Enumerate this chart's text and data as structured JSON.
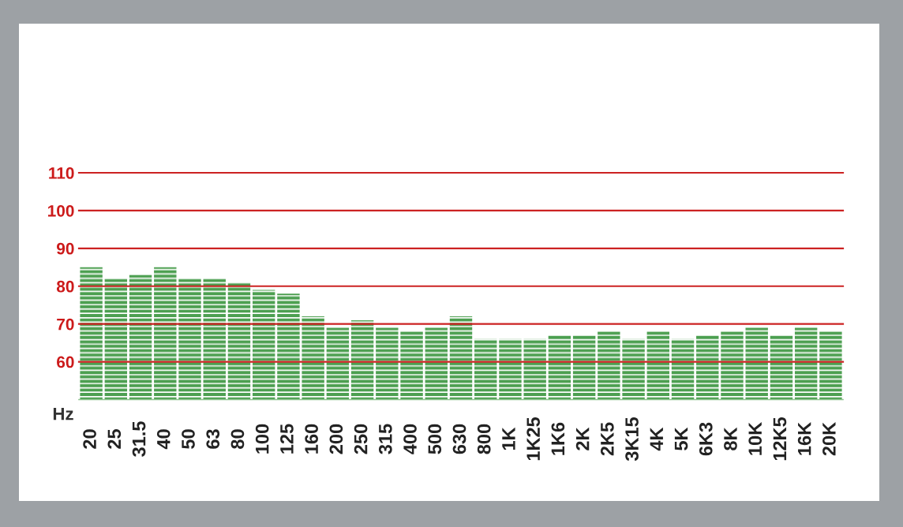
{
  "chart_data": {
    "type": "bar",
    "xlabel": "Hz",
    "categories": [
      "20",
      "25",
      "31.5",
      "40",
      "50",
      "63",
      "80",
      "100",
      "125",
      "160",
      "200",
      "250",
      "315",
      "400",
      "500",
      "630",
      "800",
      "1K",
      "1K25",
      "1K6",
      "2K",
      "2K5",
      "3K15",
      "4K",
      "5K",
      "6K3",
      "8K",
      "10K",
      "12K5",
      "16K",
      "20K"
    ],
    "values": [
      85,
      82,
      83,
      85,
      82,
      82,
      81,
      79,
      78,
      72,
      69,
      71,
      69,
      68,
      69,
      72,
      66,
      66,
      66,
      67,
      67,
      68,
      66,
      68,
      66,
      67,
      68,
      69,
      67,
      69,
      68
    ],
    "color": "#4c9f50",
    "ylim": [
      50,
      110
    ],
    "yticks": [
      60,
      70,
      80,
      90,
      100,
      110
    ],
    "grid": "y"
  }
}
